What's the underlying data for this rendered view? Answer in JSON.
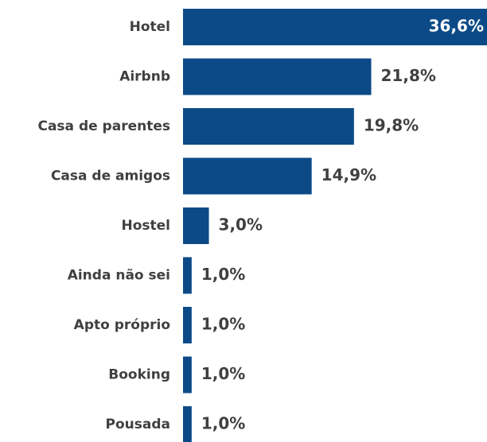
{
  "chart_data": {
    "type": "bar",
    "orientation": "horizontal",
    "color": "#0b4a87",
    "categories": [
      "Hotel",
      "Airbnb",
      "Casa de parentes",
      "Casa de amigos",
      "Hostel",
      "Ainda não sei",
      "Apto próprio",
      "Booking",
      "Pousada"
    ],
    "values": [
      36.6,
      21.8,
      19.8,
      14.9,
      3.0,
      1.0,
      1.0,
      1.0,
      1.0
    ],
    "value_labels": [
      "36,6%",
      "21,8%",
      "19,8%",
      "14,9%",
      "3,0%",
      "1,0%",
      "1,0%",
      "1,0%",
      "1,0%"
    ]
  }
}
